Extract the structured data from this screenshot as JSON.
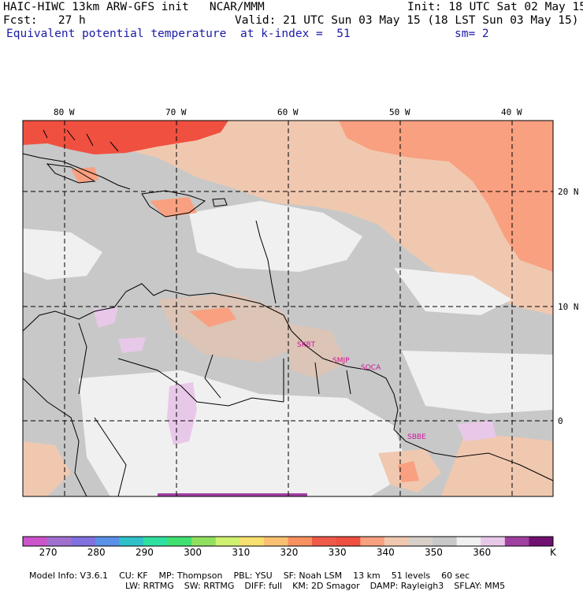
{
  "header": {
    "line1_left": "HAIC-HIWC 13km ARW-GFS init   NCAR/MMM",
    "line1_right": "Init: 18 UTC Sat 02 May 15",
    "line2_left": "Fcst:   27 h",
    "line2_right": "Valid: 21 UTC Sun 03 May 15 (18 LST Sun 03 May 15)",
    "line3_left": "Equivalent potential temperature",
    "line3_mid": "at k-index =  51",
    "line3_right": "sm= 2"
  },
  "map": {
    "lon_labels": [
      "80 W",
      "70 W",
      "60 W",
      "50 W",
      "40 W"
    ],
    "lat_labels": [
      "20 N",
      "10 N",
      "0"
    ],
    "stations": [
      "SKBT",
      "SMJP",
      "SOCA",
      "SBBE"
    ]
  },
  "colorbar": {
    "labels": [
      "270",
      "280",
      "290",
      "300",
      "310",
      "320",
      "330",
      "340",
      "350",
      "360"
    ],
    "unit": "K",
    "colors": [
      "#cc55cc",
      "#a070d0",
      "#8070e0",
      "#5a90e8",
      "#30c0c8",
      "#30e0a0",
      "#40e070",
      "#90e060",
      "#d0f070",
      "#f8e070",
      "#f8c070",
      "#f89060",
      "#f05a48",
      "#f05040",
      "#f8a080",
      "#f0c8b0",
      "#d8d0c8",
      "#c8c8c8",
      "#f0f0f0",
      "#e8c8e8",
      "#a040a0",
      "#701070"
    ]
  },
  "footer": {
    "line1": [
      {
        "text": "Model Info: V3.6.1"
      },
      {
        "text": "CU: KF"
      },
      {
        "text": "MP: Thompson"
      },
      {
        "text": "PBL: YSU"
      },
      {
        "text": "SF: Noah LSM"
      },
      {
        "text": "13 km"
      },
      {
        "text": "51 levels"
      },
      {
        "text": "60 sec"
      }
    ],
    "line2": [
      {
        "text": "LW: RRTMG"
      },
      {
        "text": "SW: RRTMG"
      },
      {
        "text": "DIFF: full"
      },
      {
        "text": "KM: 2D Smagor"
      },
      {
        "text": "DAMP: Rayleigh3"
      },
      {
        "text": "SFLAY: MM5"
      }
    ]
  }
}
